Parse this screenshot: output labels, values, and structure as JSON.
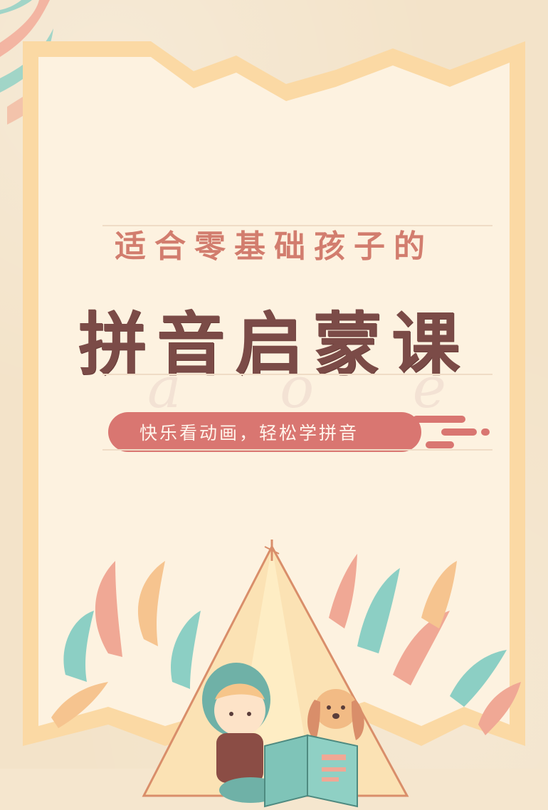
{
  "poster": {
    "subtitle": "适合零基础孩子的",
    "title": "拼音启蒙课",
    "tagline": "快乐看动画，轻松学拼音",
    "watermark_letters": [
      "a",
      "o",
      "e"
    ]
  },
  "colors": {
    "background": "#f3e3c9",
    "card": "#fdf2e0",
    "frame": "#fbd9a4",
    "subtitle": "#d27d6e",
    "title": "#7b4b47",
    "pill": "#d97671"
  },
  "illustration": {
    "icons": [
      "tent-icon",
      "child-reading-icon",
      "dog-icon",
      "book-icon",
      "leaf-icon"
    ]
  }
}
